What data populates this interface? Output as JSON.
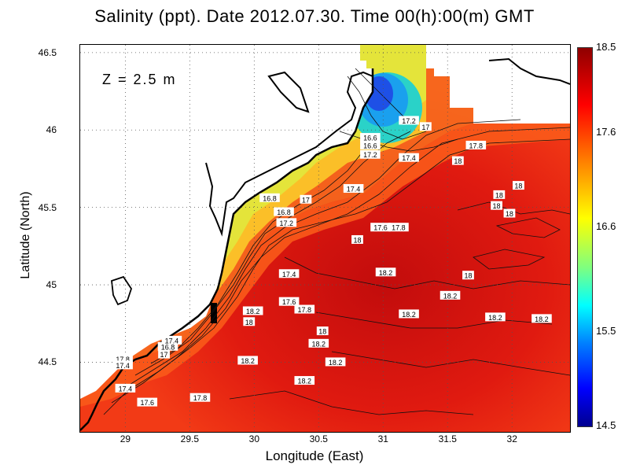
{
  "title": "Salinity (ppt). Date 2012.07.30. Time 00(h):00(m) GMT",
  "depth_label": "Z = 2.5 m",
  "axes": {
    "x_title": "Longitude (East)",
    "y_title": "Latitude (North)",
    "x_ticks": [
      "29",
      "29.5",
      "30",
      "30.5",
      "31",
      "31.5",
      "32"
    ],
    "y_ticks": [
      "46.5",
      "46",
      "45.5",
      "45",
      "44.5"
    ],
    "x_range": [
      28.65,
      32.45
    ],
    "y_range": [
      44.05,
      46.55
    ]
  },
  "colorbar": {
    "labels": [
      "18.5",
      "17.6",
      "16.6",
      "15.5",
      "14.5"
    ],
    "min": 14.5,
    "max": 18.5
  },
  "contour_labels": [
    {
      "lon": 31.2,
      "lat": 46.06,
      "text": "17.2"
    },
    {
      "lon": 31.33,
      "lat": 46.02,
      "text": "17"
    },
    {
      "lon": 30.9,
      "lat": 45.95,
      "text": "16.6"
    },
    {
      "lon": 30.9,
      "lat": 45.9,
      "text": "16.6"
    },
    {
      "lon": 30.9,
      "lat": 45.84,
      "text": "17.2"
    },
    {
      "lon": 31.2,
      "lat": 45.82,
      "text": "17.4"
    },
    {
      "lon": 31.58,
      "lat": 45.8,
      "text": "18"
    },
    {
      "lon": 31.72,
      "lat": 45.9,
      "text": "17.8"
    },
    {
      "lon": 30.12,
      "lat": 45.56,
      "text": "16.8"
    },
    {
      "lon": 30.23,
      "lat": 45.47,
      "text": "16.8"
    },
    {
      "lon": 30.4,
      "lat": 45.55,
      "text": "17"
    },
    {
      "lon": 30.77,
      "lat": 45.62,
      "text": "17.4"
    },
    {
      "lon": 30.25,
      "lat": 45.4,
      "text": "17.2"
    },
    {
      "lon": 30.98,
      "lat": 45.37,
      "text": "17.6"
    },
    {
      "lon": 31.12,
      "lat": 45.37,
      "text": "17.8"
    },
    {
      "lon": 30.8,
      "lat": 45.29,
      "text": "18"
    },
    {
      "lon": 31.9,
      "lat": 45.58,
      "text": "18"
    },
    {
      "lon": 32.05,
      "lat": 45.64,
      "text": "18"
    },
    {
      "lon": 31.98,
      "lat": 45.46,
      "text": "18"
    },
    {
      "lon": 31.88,
      "lat": 45.51,
      "text": "18"
    },
    {
      "lon": 30.27,
      "lat": 45.07,
      "text": "17.4"
    },
    {
      "lon": 31.02,
      "lat": 45.08,
      "text": "18.2"
    },
    {
      "lon": 31.66,
      "lat": 45.06,
      "text": "18"
    },
    {
      "lon": 31.52,
      "lat": 44.93,
      "text": "18.2"
    },
    {
      "lon": 30.27,
      "lat": 44.89,
      "text": "17.6"
    },
    {
      "lon": 30.39,
      "lat": 44.84,
      "text": "17.8"
    },
    {
      "lon": 29.99,
      "lat": 44.83,
      "text": "18.2"
    },
    {
      "lon": 29.96,
      "lat": 44.76,
      "text": "18"
    },
    {
      "lon": 31.2,
      "lat": 44.81,
      "text": "18.2"
    },
    {
      "lon": 31.87,
      "lat": 44.79,
      "text": "18.2"
    },
    {
      "lon": 32.23,
      "lat": 44.78,
      "text": "18.2"
    },
    {
      "lon": 30.53,
      "lat": 44.7,
      "text": "18"
    },
    {
      "lon": 30.5,
      "lat": 44.62,
      "text": "18.2"
    },
    {
      "lon": 30.63,
      "lat": 44.5,
      "text": "18.2"
    },
    {
      "lon": 29.95,
      "lat": 44.51,
      "text": "18.2"
    },
    {
      "lon": 30.39,
      "lat": 44.38,
      "text": "18.2"
    },
    {
      "lon": 29.33,
      "lat": 44.6,
      "text": "16.8"
    },
    {
      "lon": 29.36,
      "lat": 44.64,
      "text": "17.4"
    },
    {
      "lon": 29.3,
      "lat": 44.55,
      "text": "17"
    },
    {
      "lon": 28.98,
      "lat": 44.52,
      "text": "17.8"
    },
    {
      "lon": 28.98,
      "lat": 44.48,
      "text": "17.4"
    },
    {
      "lon": 29.0,
      "lat": 44.33,
      "text": "17.4"
    },
    {
      "lon": 29.17,
      "lat": 44.24,
      "text": "17.6"
    },
    {
      "lon": 29.58,
      "lat": 44.27,
      "text": "17.8"
    }
  ],
  "colors": {
    "background_sea": "#f22a14",
    "land": "#ffffff",
    "coast": "#000000"
  }
}
